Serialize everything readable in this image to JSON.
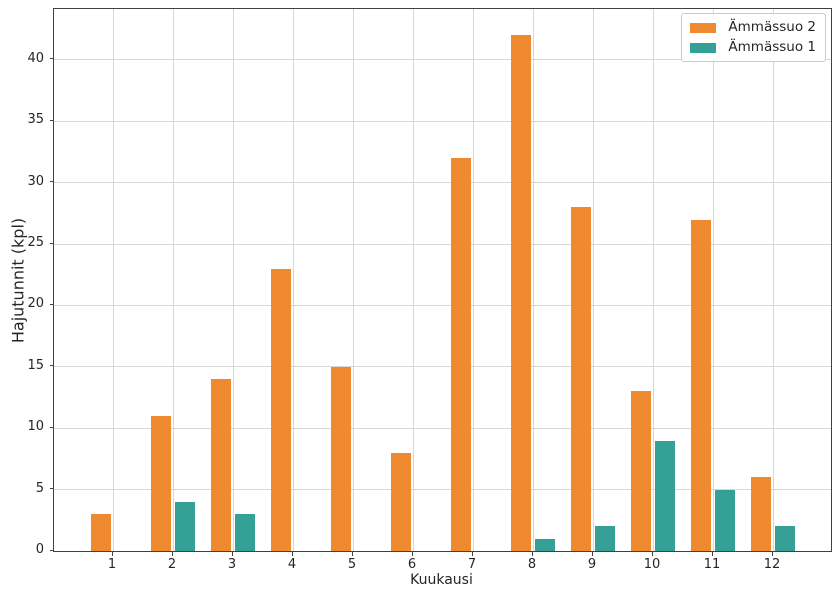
{
  "figure": {
    "background": "#ffffff",
    "text_color": "#262626",
    "grid_color": "#d8d8d8",
    "spine_color": "#404040",
    "legend_border_color": "#cccccc",
    "legend_background": "#ffffff"
  },
  "chart_data": {
    "type": "bar",
    "title": "",
    "xlabel": "Kuukausi",
    "ylabel": "Hajutunnit (kpl)",
    "categories": [
      "1",
      "2",
      "3",
      "4",
      "5",
      "6",
      "7",
      "8",
      "9",
      "10",
      "11",
      "12"
    ],
    "series": [
      {
        "name": "Ämmässuo 2",
        "color": "#f08a30",
        "values": [
          3,
          11,
          14,
          23,
          15,
          8,
          32,
          42,
          28,
          13,
          27,
          6
        ]
      },
      {
        "name": "Ämmässuo 1",
        "color": "#35a096",
        "values": [
          0,
          4,
          3,
          0,
          0,
          0,
          0,
          1,
          2,
          9,
          5,
          2
        ]
      }
    ],
    "ylim": [
      0,
      44.15
    ],
    "yticks": [
      0,
      5,
      10,
      15,
      20,
      25,
      30,
      35,
      40
    ],
    "grid": "both",
    "legend_position": "upper right"
  }
}
